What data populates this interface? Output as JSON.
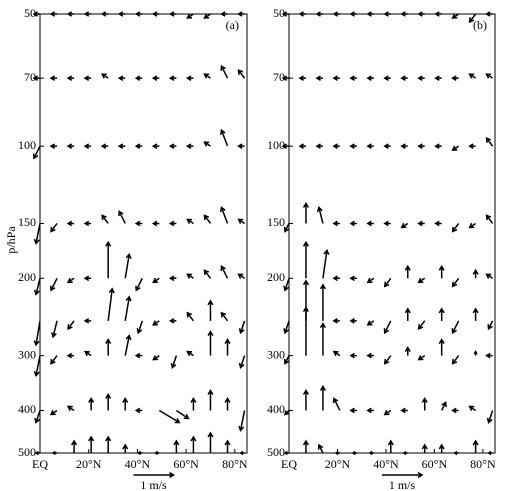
{
  "chart_data": [
    {
      "type": "quiver",
      "panel_label": "(a)",
      "ylabel": "p/hPa",
      "log_y": true,
      "color": "#000000",
      "xlim": [
        0,
        85
      ],
      "ylim": [
        500,
        50
      ],
      "xticks": [
        {
          "value": 0,
          "label": "EQ"
        },
        {
          "value": 20,
          "label": "20°N"
        },
        {
          "value": 40,
          "label": "40°N"
        },
        {
          "value": 60,
          "label": "60°N"
        },
        {
          "value": 80,
          "label": "80°N"
        }
      ],
      "yticks": [
        50,
        70,
        100,
        150,
        200,
        300,
        400,
        500
      ],
      "reference": {
        "value": 1,
        "label": "1 m/s"
      },
      "x": [
        0,
        7,
        14,
        21,
        28,
        35,
        42,
        49,
        56,
        63,
        70,
        77,
        84
      ],
      "levels": [
        {
          "p": 50,
          "u": [
            -0.15,
            -0.15,
            -0.15,
            -0.15,
            -0.15,
            -0.15,
            -0.15,
            -0.15,
            -0.15,
            -0.15,
            -0.15,
            -0.15,
            -0.15
          ],
          "v": [
            0,
            0,
            0,
            0,
            0,
            0,
            0,
            0,
            0,
            -0.1,
            -0.1,
            0,
            0
          ]
        },
        {
          "p": 70,
          "u": [
            -0.15,
            -0.15,
            -0.15,
            -0.15,
            -0.15,
            -0.15,
            -0.15,
            -0.15,
            -0.15,
            -0.15,
            -0.15,
            -0.15,
            -0.15
          ],
          "v": [
            0,
            0,
            0,
            0,
            0.1,
            0,
            0,
            0,
            0,
            0,
            0.1,
            0.3,
            0.2
          ]
        },
        {
          "p": 100,
          "u": [
            -0.15,
            -0.15,
            -0.15,
            -0.15,
            -0.15,
            -0.15,
            -0.15,
            -0.15,
            -0.15,
            -0.15,
            -0.15,
            -0.15,
            -0.15
          ],
          "v": [
            -0.3,
            0,
            0,
            0,
            0,
            0,
            0,
            0,
            0,
            0,
            0.1,
            0.4,
            0
          ]
        },
        {
          "p": 150,
          "u": [
            -0.1,
            -0.15,
            -0.15,
            -0.15,
            -0.15,
            -0.15,
            -0.15,
            -0.15,
            -0.15,
            -0.15,
            -0.15,
            -0.15,
            -0.15
          ],
          "v": [
            -0.5,
            -0.2,
            0,
            0,
            0.2,
            0.3,
            0,
            0,
            0,
            0.1,
            0.2,
            0.4,
            0.1
          ]
        },
        {
          "p": 200,
          "u": [
            -0.1,
            -0.15,
            -0.15,
            -0.15,
            0,
            0.1,
            -0.15,
            -0.15,
            -0.15,
            -0.15,
            -0.15,
            -0.15,
            -0.15
          ],
          "v": [
            -0.4,
            -0.3,
            -0.1,
            0,
            0.9,
            0.6,
            -0.3,
            -0.1,
            0,
            0.1,
            0.2,
            0.3,
            0.1
          ]
        },
        {
          "p": 250,
          "u": [
            -0.1,
            -0.1,
            -0.15,
            -0.15,
            0.1,
            0.1,
            -0.1,
            -0.15,
            -0.15,
            -0.15,
            0,
            -0.15,
            -0.1
          ],
          "v": [
            -0.6,
            -0.4,
            -0.2,
            0,
            0.8,
            0.6,
            -0.3,
            -0.1,
            0,
            0.2,
            0.5,
            0.2,
            -0.3
          ]
        },
        {
          "p": 300,
          "u": [
            -0.1,
            -0.15,
            -0.15,
            -0.15,
            0,
            0.1,
            -0.15,
            -0.15,
            -0.1,
            -0.15,
            0,
            0,
            -0.1
          ],
          "v": [
            -0.5,
            -0.2,
            0,
            0.1,
            0.4,
            0.5,
            0,
            -0.1,
            -0.3,
            0.1,
            0.6,
            0.4,
            -0.3
          ]
        },
        {
          "p": 400,
          "u": [
            -0.1,
            -0.15,
            -0.15,
            0,
            0,
            0,
            -0.15,
            0.5,
            0.3,
            0,
            0,
            0,
            -0.1
          ],
          "v": [
            -0.3,
            -0.1,
            0.1,
            0.3,
            0.4,
            0.3,
            0,
            -0.3,
            -0.2,
            0.3,
            0.5,
            0.3,
            -0.5
          ]
        },
        {
          "p": 500,
          "u": [
            -0.1,
            -0.1,
            0,
            0,
            0,
            0,
            -0.1,
            -0.1,
            0,
            0,
            0,
            0,
            -0.1
          ],
          "v": [
            0,
            0,
            0.3,
            0.4,
            0.4,
            0.2,
            0,
            0,
            0.3,
            0.4,
            0.5,
            0.3,
            0
          ]
        }
      ]
    },
    {
      "type": "quiver",
      "panel_label": "(b)",
      "log_y": true,
      "color": "#000000",
      "xlim": [
        0,
        85
      ],
      "ylim": [
        500,
        50
      ],
      "xticks": [
        {
          "value": 0,
          "label": "EQ"
        },
        {
          "value": 20,
          "label": "20°N"
        },
        {
          "value": 40,
          "label": "40°N"
        },
        {
          "value": 60,
          "label": "60°N"
        },
        {
          "value": 80,
          "label": "80°N"
        }
      ],
      "yticks": [
        50,
        70,
        100,
        150,
        200,
        300,
        400,
        500
      ],
      "reference": {
        "value": 1,
        "label": "1 m/s"
      },
      "x": [
        0,
        7,
        14,
        21,
        28,
        35,
        42,
        49,
        56,
        63,
        70,
        77,
        84
      ],
      "levels": [
        {
          "p": 50,
          "u": [
            -0.15,
            -0.15,
            -0.15,
            -0.15,
            -0.15,
            -0.15,
            -0.15,
            -0.15,
            -0.15,
            -0.15,
            -0.15,
            -0.15,
            -0.15
          ],
          "v": [
            0,
            0,
            0,
            0,
            0,
            0,
            0,
            0,
            0,
            0,
            -0.1,
            -0.2,
            0
          ]
        },
        {
          "p": 70,
          "u": [
            -0.15,
            -0.15,
            -0.15,
            -0.15,
            -0.15,
            -0.15,
            -0.15,
            -0.15,
            -0.15,
            -0.15,
            -0.15,
            -0.15,
            -0.15
          ],
          "v": [
            0,
            0,
            0,
            0,
            0,
            0,
            0,
            0,
            0,
            0,
            0,
            0.1,
            0.1
          ]
        },
        {
          "p": 100,
          "u": [
            -0.15,
            -0.15,
            -0.15,
            -0.15,
            -0.15,
            -0.15,
            -0.15,
            -0.15,
            -0.15,
            -0.15,
            -0.15,
            -0.15,
            -0.15
          ],
          "v": [
            0,
            0,
            0,
            0,
            0,
            0,
            0,
            0,
            0,
            0,
            -0.1,
            0,
            0.2
          ]
        },
        {
          "p": 150,
          "u": [
            -0.1,
            0,
            -0.1,
            -0.15,
            -0.15,
            -0.15,
            -0.15,
            -0.15,
            -0.15,
            -0.15,
            -0.15,
            -0.15,
            -0.15
          ],
          "v": [
            -0.2,
            0.5,
            0.4,
            0,
            0,
            0,
            0,
            -0.1,
            0,
            0,
            -0.2,
            -0.1,
            0.2
          ]
        },
        {
          "p": 200,
          "u": [
            -0.1,
            0,
            0.1,
            -0.15,
            -0.15,
            -0.15,
            -0.15,
            0,
            -0.15,
            0,
            -0.15,
            0,
            -0.15
          ],
          "v": [
            -0.3,
            0.9,
            0.7,
            0,
            0,
            -0.1,
            -0.2,
            0.3,
            -0.1,
            0.3,
            -0.2,
            0.2,
            0.1
          ]
        },
        {
          "p": 250,
          "u": [
            -0.1,
            0,
            0,
            -0.15,
            -0.15,
            -0.15,
            -0.15,
            0,
            -0.15,
            0,
            -0.15,
            0,
            -0.1
          ],
          "v": [
            -0.3,
            1.0,
            0.9,
            0,
            0,
            -0.1,
            -0.3,
            0.3,
            -0.2,
            0.3,
            -0.3,
            0.3,
            -0.2
          ]
        },
        {
          "p": 300,
          "u": [
            -0.1,
            0,
            0,
            -0.15,
            -0.15,
            -0.15,
            -0.15,
            0,
            -0.15,
            0,
            -0.15,
            0,
            -0.15
          ],
          "v": [
            -0.2,
            1.2,
            0.8,
            0.1,
            0,
            0,
            -0.2,
            0.2,
            -0.1,
            0.4,
            -0.2,
            0.1,
            0
          ]
        },
        {
          "p": 400,
          "u": [
            -0.1,
            0,
            0,
            -0.15,
            -0.15,
            -0.15,
            -0.15,
            -0.15,
            0,
            0.1,
            -0.15,
            -0.15,
            -0.1
          ],
          "v": [
            -0.1,
            0.5,
            0.6,
            0.3,
            0,
            0,
            -0.1,
            0,
            0.3,
            0.2,
            0,
            0.1,
            -0.3
          ]
        },
        {
          "p": 500,
          "u": [
            -0.1,
            0,
            -0.1,
            -0.1,
            -0.1,
            -0.1,
            0,
            -0.1,
            0,
            0,
            -0.1,
            0,
            -0.1
          ],
          "v": [
            0,
            0.3,
            0.2,
            0,
            0,
            0,
            0.3,
            0,
            0.2,
            0.2,
            0,
            0.3,
            0
          ]
        }
      ]
    }
  ]
}
